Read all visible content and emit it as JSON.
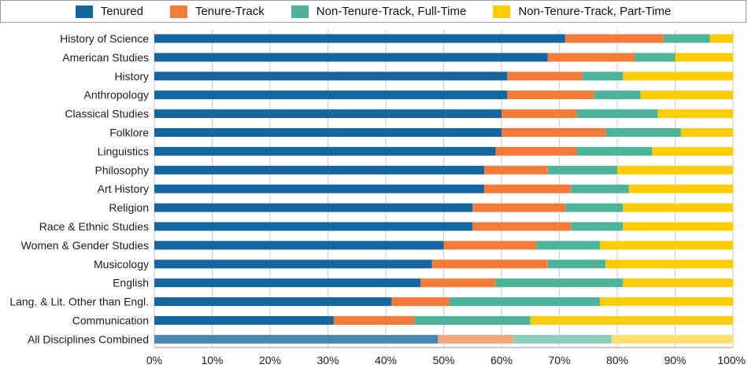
{
  "chart_data": {
    "type": "bar",
    "orientation": "horizontal",
    "stacked": true,
    "legend_position": "top",
    "grid": true,
    "xlim": [
      0,
      100
    ],
    "x_ticks": [
      "0%",
      "10%",
      "20%",
      "30%",
      "40%",
      "50%",
      "60%",
      "70%",
      "80%",
      "90%",
      "100%"
    ],
    "categories": [
      "History of Science",
      "American Studies",
      "History",
      "Anthropology",
      "Classical Studies",
      "Folklore",
      "Linguistics",
      "Philosophy",
      "Art History",
      "Religion",
      "Race & Ethnic Studies",
      "Women & Gender Studies",
      "Musicology",
      "English",
      "Lang. & Lit. Other than Engl.",
      "Communication",
      "All Disciplines Combined"
    ],
    "series": [
      {
        "name": "Tenured",
        "color": "#1565a0",
        "values": [
          71,
          68,
          61,
          61,
          60,
          60,
          59,
          57,
          57,
          55,
          55,
          50,
          48,
          46,
          41,
          31,
          49
        ]
      },
      {
        "name": "Tenure-Track",
        "color": "#f47b38",
        "values": [
          17,
          15,
          13,
          15,
          13,
          18,
          14,
          11,
          15,
          16,
          17,
          16,
          20,
          13,
          10,
          14,
          13
        ]
      },
      {
        "name": "Non-Tenure-Track, Full-Time",
        "color": "#4db39a",
        "values": [
          8,
          7,
          7,
          8,
          14,
          13,
          13,
          12,
          10,
          10,
          9,
          11,
          10,
          22,
          26,
          20,
          17
        ]
      },
      {
        "name": "Non-Tenure-Track, Part-Time",
        "color": "#ffcc00",
        "values": [
          4,
          10,
          19,
          16,
          13,
          9,
          14,
          20,
          18,
          19,
          19,
          23,
          22,
          19,
          23,
          35,
          21
        ]
      }
    ],
    "highlight_category": "All Disciplines Combined",
    "highlight_colors": [
      "#4a86b3",
      "#f6a47a",
      "#8ccfbd",
      "#ffdf70"
    ]
  }
}
